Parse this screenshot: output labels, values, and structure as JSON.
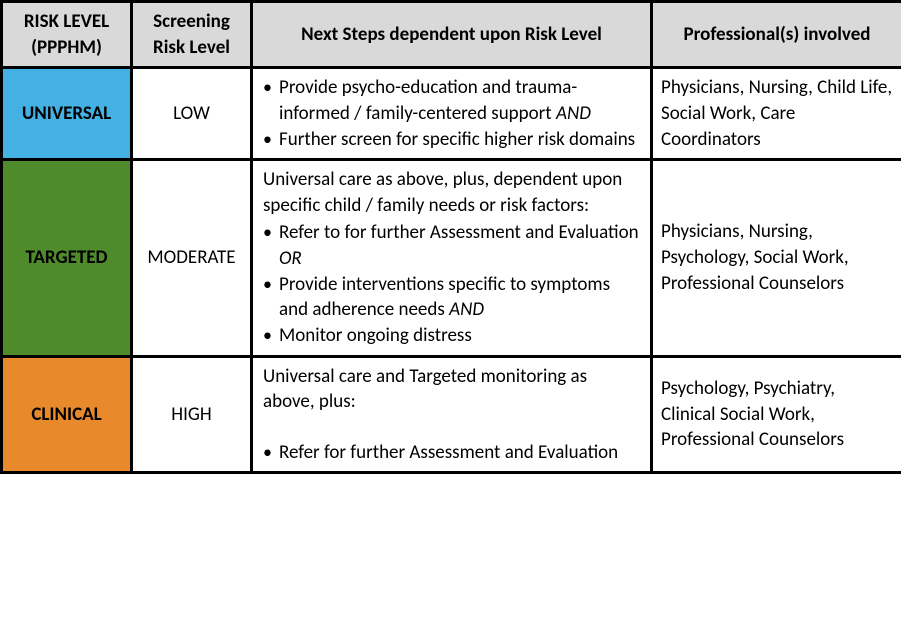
{
  "headers": {
    "risk": "RISK LEVEL (PPPHM)",
    "screening": "Screening Risk Level",
    "steps": "Next Steps dependent upon Risk Level",
    "professionals": "Professional(s) involved"
  },
  "rows": {
    "universal": {
      "risk_label": "UNIVERSAL",
      "risk_bg": "#44b1e5",
      "screening": "LOW",
      "steps_intro": "",
      "bullets": [
        "Provide psycho-education and trauma-informed / family-centered support AND",
        "Further screen for specific higher risk domains"
      ],
      "professionals": "Physicians, Nursing, Child Life, Social Work, Care Coordinators"
    },
    "targeted": {
      "risk_label": "TARGETED",
      "risk_bg": "#4f8b2b",
      "screening": "MODERATE",
      "steps_intro": "Universal care as above, plus, dependent upon specific child / family needs or risk factors:",
      "bullets": [
        "Refer to for further Assessment and Evaluation OR",
        "Provide interventions specific to symptoms and adherence needs  AND",
        "Monitor ongoing distress"
      ],
      "professionals": "Physicians, Nursing, Psychology, Social Work, Professional Counselors"
    },
    "clinical": {
      "risk_label": "CLINICAL",
      "risk_bg": "#e8892c",
      "screening": "HIGH",
      "steps_intro": "Universal care and Targeted monitoring as above, plus:",
      "bullets": [
        "Refer for further Assessment and Evaluation"
      ],
      "professionals": "Psychology, Psychiatry, Clinical Social Work, Professional Counselors"
    }
  },
  "style": {
    "header_bg": "#d9d9d9",
    "border_color": "#000000",
    "font_family": "Calibri, Arial, sans-serif",
    "font_size_pt": 14
  }
}
